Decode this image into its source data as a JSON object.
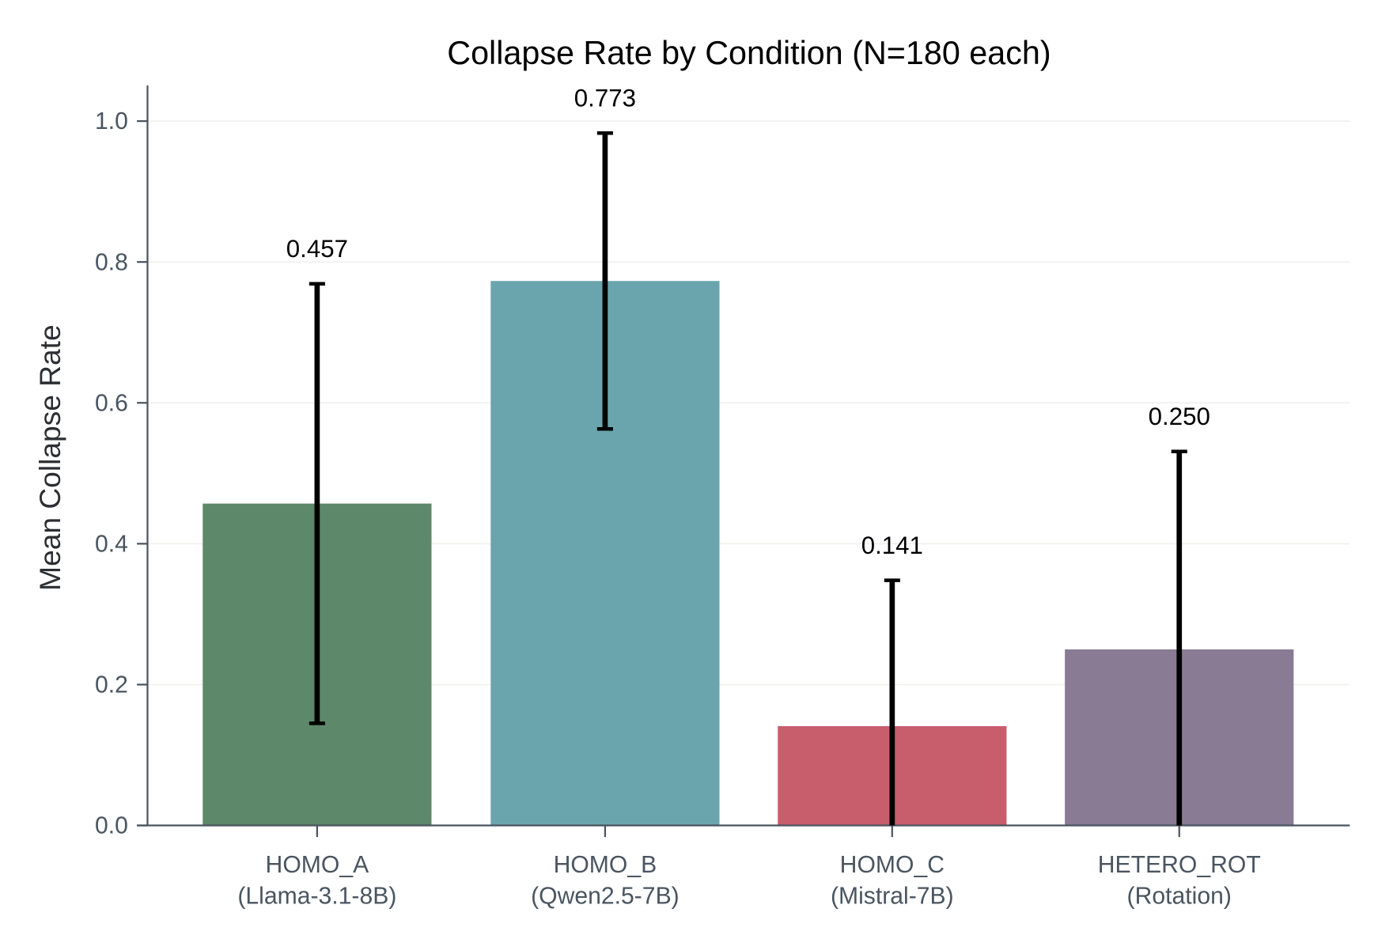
{
  "chart_data": {
    "type": "bar",
    "title": "Collapse Rate by Condition (N=180 each)",
    "xlabel": "",
    "ylabel": "Mean Collapse Rate",
    "ylim": [
      0,
      1.05
    ],
    "yticks": [
      "0.0",
      "0.2",
      "0.4",
      "0.6",
      "0.8",
      "1.0"
    ],
    "grid": "horizontal",
    "categories": [
      {
        "line1": "HOMO_A",
        "line2": "(Llama-3.1-8B)"
      },
      {
        "line1": "HOMO_B",
        "line2": "(Qwen2.5-7B)"
      },
      {
        "line1": "HOMO_C",
        "line2": "(Mistral-7B)"
      },
      {
        "line1": "HETERO_ROT",
        "line2": "(Rotation)"
      }
    ],
    "values": [
      0.457,
      0.773,
      0.141,
      0.25
    ],
    "value_labels": [
      "0.457",
      "0.773",
      "0.141",
      "0.250"
    ],
    "errors": [
      0.312,
      0.21,
      0.207,
      0.281
    ],
    "colors": [
      "#5d8869",
      "#6aa5ad",
      "#c85d6c",
      "#897b93"
    ]
  }
}
